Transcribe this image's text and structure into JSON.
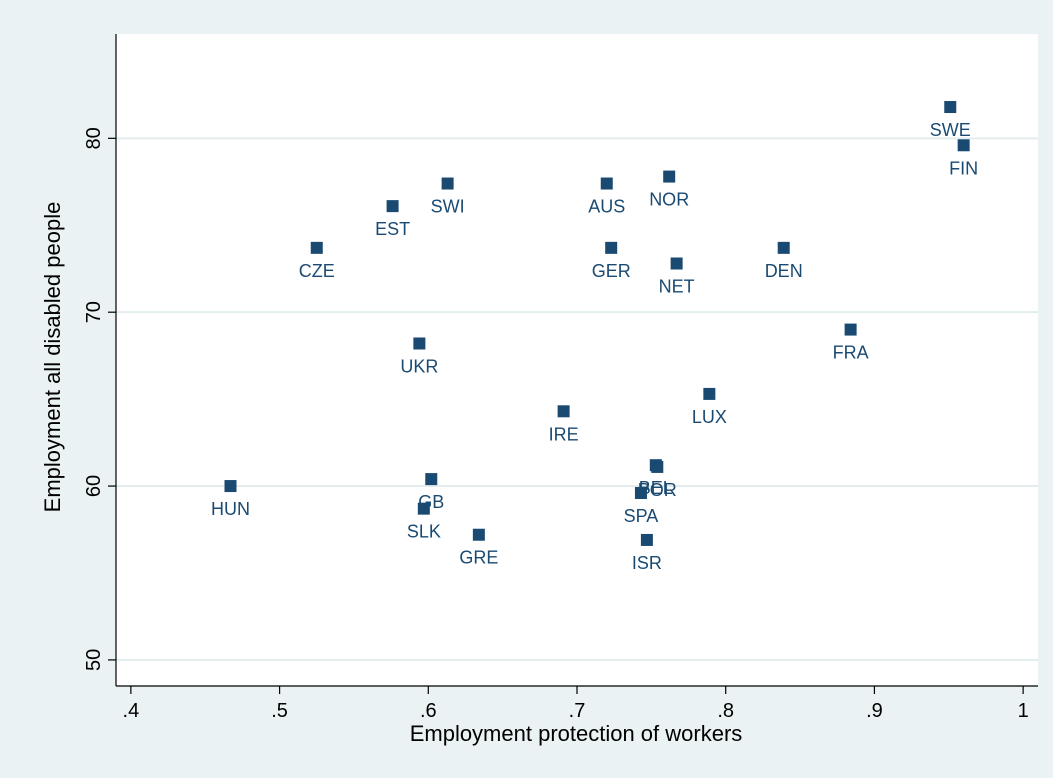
{
  "chart_data": {
    "type": "scatter",
    "xlabel": "Employment protection of workers",
    "ylabel": "Employment all disabled people",
    "xlim": [
      0.39,
      1.01
    ],
    "ylim": [
      48.5,
      86
    ],
    "x_ticks": [
      0.4,
      0.5,
      0.6,
      0.7,
      0.8,
      0.9,
      1.0
    ],
    "x_tick_labels": [
      ".4",
      ".5",
      ".6",
      ".7",
      ".8",
      ".9",
      "1"
    ],
    "y_ticks": [
      50,
      60,
      70,
      80
    ],
    "y_tick_labels": [
      "50",
      "60",
      "70",
      "80"
    ],
    "grid": "horizontal",
    "marker_color": "#1a4a72",
    "label_color": "#1a4a72",
    "background_color": "#eaf2f3",
    "plot_background_color": "#ffffff",
    "points": [
      {
        "label": "SWE",
        "x": 0.951,
        "y": 81.8
      },
      {
        "label": "FIN",
        "x": 0.96,
        "y": 79.6
      },
      {
        "label": "SWI",
        "x": 0.613,
        "y": 77.4
      },
      {
        "label": "EST",
        "x": 0.576,
        "y": 76.1
      },
      {
        "label": "AUS",
        "x": 0.72,
        "y": 77.4
      },
      {
        "label": "NOR",
        "x": 0.762,
        "y": 77.8
      },
      {
        "label": "CZE",
        "x": 0.525,
        "y": 73.7
      },
      {
        "label": "GER",
        "x": 0.723,
        "y": 73.7
      },
      {
        "label": "NET",
        "x": 0.767,
        "y": 72.8
      },
      {
        "label": "DEN",
        "x": 0.839,
        "y": 73.7
      },
      {
        "label": "UKR",
        "x": 0.594,
        "y": 68.2
      },
      {
        "label": "FRA",
        "x": 0.884,
        "y": 69.0
      },
      {
        "label": "LUX",
        "x": 0.789,
        "y": 65.3
      },
      {
        "label": "IRE",
        "x": 0.691,
        "y": 64.3
      },
      {
        "label": "HUN",
        "x": 0.467,
        "y": 60.0
      },
      {
        "label": "GB",
        "x": 0.602,
        "y": 60.4
      },
      {
        "label": "BEL",
        "x": 0.753,
        "y": 61.2
      },
      {
        "label": "POR",
        "x": 0.754,
        "y": 61.1
      },
      {
        "label": "SPA",
        "x": 0.743,
        "y": 59.6
      },
      {
        "label": "SLK",
        "x": 0.597,
        "y": 58.7
      },
      {
        "label": "GRE",
        "x": 0.634,
        "y": 57.2
      },
      {
        "label": "ISR",
        "x": 0.747,
        "y": 56.9
      }
    ]
  }
}
